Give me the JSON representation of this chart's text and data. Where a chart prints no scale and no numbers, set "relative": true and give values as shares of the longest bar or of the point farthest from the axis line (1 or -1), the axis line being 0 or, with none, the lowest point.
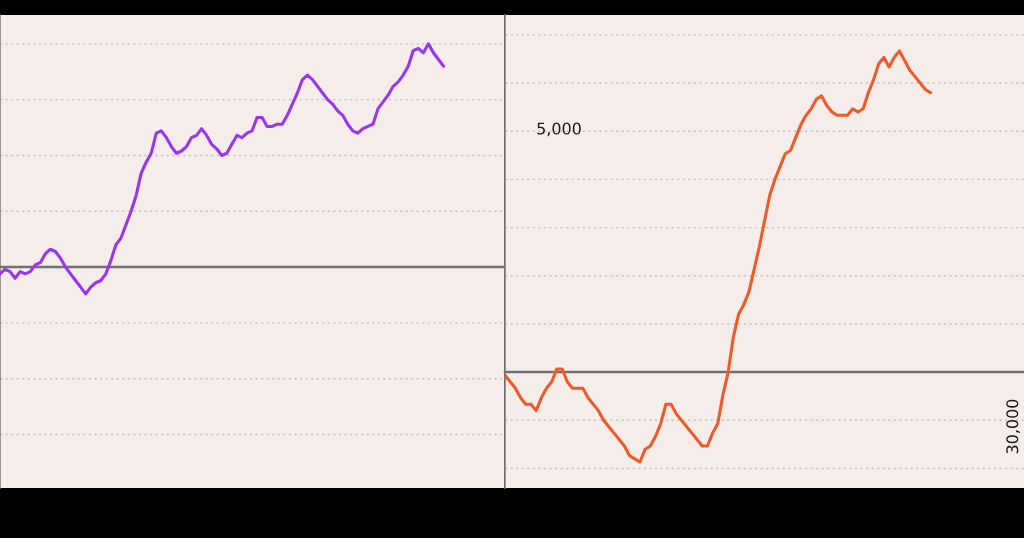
{
  "chart_data": [
    {
      "type": "line",
      "relative": true,
      "grid": "y",
      "categories": [
        null,
        null,
        null,
        null,
        null,
        null,
        null,
        null,
        null,
        null,
        null,
        null,
        null,
        null,
        null,
        null,
        null,
        null,
        null,
        null,
        null,
        null,
        null,
        null,
        null,
        null,
        null,
        null,
        null,
        null,
        null,
        null,
        null,
        null,
        null,
        null,
        null,
        null,
        null,
        null,
        null,
        null,
        null,
        null,
        null,
        null,
        null,
        null,
        null,
        null,
        null,
        null,
        null,
        null,
        null,
        null,
        null,
        null,
        null,
        null,
        null,
        null,
        null,
        null,
        null,
        null,
        null,
        null,
        null,
        null,
        null,
        null,
        null,
        null,
        null,
        null,
        null,
        null,
        null,
        null,
        null,
        null,
        null,
        null,
        null,
        null,
        null,
        null,
        null,
        null,
        null,
        null,
        null,
        null,
        null,
        null,
        null,
        null,
        null,
        null,
        null
      ],
      "series": [
        {
          "color": "#9a35ee",
          "values": [
            -0.03,
            -0.01,
            -0.02,
            -0.05,
            -0.02,
            -0.03,
            -0.02,
            0.01,
            0.02,
            0.06,
            0.08,
            0.07,
            0.04,
            0.0,
            -0.03,
            -0.06,
            -0.09,
            -0.12,
            -0.09,
            -0.07,
            -0.06,
            -0.03,
            0.03,
            0.1,
            0.13,
            0.19,
            0.25,
            0.32,
            0.42,
            0.47,
            0.51,
            0.6,
            0.61,
            0.58,
            0.54,
            0.51,
            0.52,
            0.54,
            0.58,
            0.59,
            0.62,
            0.59,
            0.55,
            0.53,
            0.5,
            0.51,
            0.55,
            0.59,
            0.58,
            0.6,
            0.61,
            0.67,
            0.67,
            0.63,
            0.63,
            0.64,
            0.64,
            0.68,
            0.73,
            0.78,
            0.84,
            0.86,
            0.84,
            0.81,
            0.78,
            0.75,
            0.73,
            0.7,
            0.68,
            0.64,
            0.61,
            0.6,
            0.62,
            0.63,
            0.64,
            0.71,
            0.74,
            0.77,
            0.81,
            0.83,
            0.86,
            0.9,
            0.97,
            0.98,
            0.96,
            1.0,
            0.96,
            0.93,
            0.9,
            null,
            null,
            null,
            null,
            null,
            null,
            null,
            null,
            null,
            null,
            null,
            null
          ]
        }
      ]
    },
    {
      "type": "line",
      "relative": true,
      "grid": "y",
      "annotations": [
        "5,000",
        "30,000"
      ],
      "categories": [
        null,
        null,
        null,
        null,
        null,
        null,
        null,
        null,
        null,
        null,
        null,
        null,
        null,
        null,
        null,
        null,
        null,
        null,
        null,
        null,
        null,
        null,
        null,
        null,
        null,
        null,
        null,
        null,
        null,
        null,
        null,
        null,
        null,
        null,
        null,
        null,
        null,
        null,
        null,
        null,
        null,
        null,
        null,
        null,
        null,
        null,
        null,
        null,
        null,
        null,
        null,
        null,
        null,
        null,
        null,
        null,
        null,
        null,
        null,
        null,
        null,
        null,
        null,
        null,
        null,
        null,
        null,
        null,
        null,
        null,
        null,
        null,
        null,
        null,
        null,
        null,
        null,
        null,
        null,
        null,
        null,
        null,
        null,
        null,
        null,
        null,
        null,
        null,
        null,
        null,
        null,
        null,
        null,
        null,
        null,
        null,
        null,
        null,
        null,
        null,
        null
      ],
      "series": [
        {
          "color": "#ee5a2a",
          "values": [
            -0.01,
            -0.03,
            -0.05,
            -0.08,
            -0.1,
            -0.1,
            -0.12,
            -0.08,
            -0.05,
            -0.03,
            0.01,
            0.01,
            -0.03,
            -0.05,
            -0.05,
            -0.05,
            -0.08,
            -0.1,
            -0.12,
            -0.15,
            -0.17,
            -0.19,
            -0.21,
            -0.23,
            -0.26,
            -0.27,
            -0.28,
            -0.24,
            -0.23,
            -0.2,
            -0.16,
            -0.1,
            -0.1,
            -0.13,
            -0.15,
            -0.17,
            -0.19,
            -0.21,
            -0.23,
            -0.23,
            -0.19,
            -0.16,
            -0.07,
            0.0,
            0.11,
            0.18,
            0.21,
            0.25,
            0.32,
            0.39,
            0.47,
            0.55,
            0.6,
            0.64,
            0.68,
            0.69,
            0.73,
            0.77,
            0.8,
            0.82,
            0.85,
            0.86,
            0.83,
            0.81,
            0.8,
            0.8,
            0.8,
            0.82,
            0.81,
            0.82,
            0.87,
            0.91,
            0.96,
            0.98,
            0.95,
            0.98,
            1.0,
            0.97,
            0.94,
            0.92,
            0.9,
            0.88,
            0.87,
            null,
            null,
            null,
            null,
            null,
            null,
            null,
            null,
            null,
            null,
            null,
            null,
            null,
            null,
            null,
            null,
            null,
            null
          ]
        }
      ]
    }
  ]
}
